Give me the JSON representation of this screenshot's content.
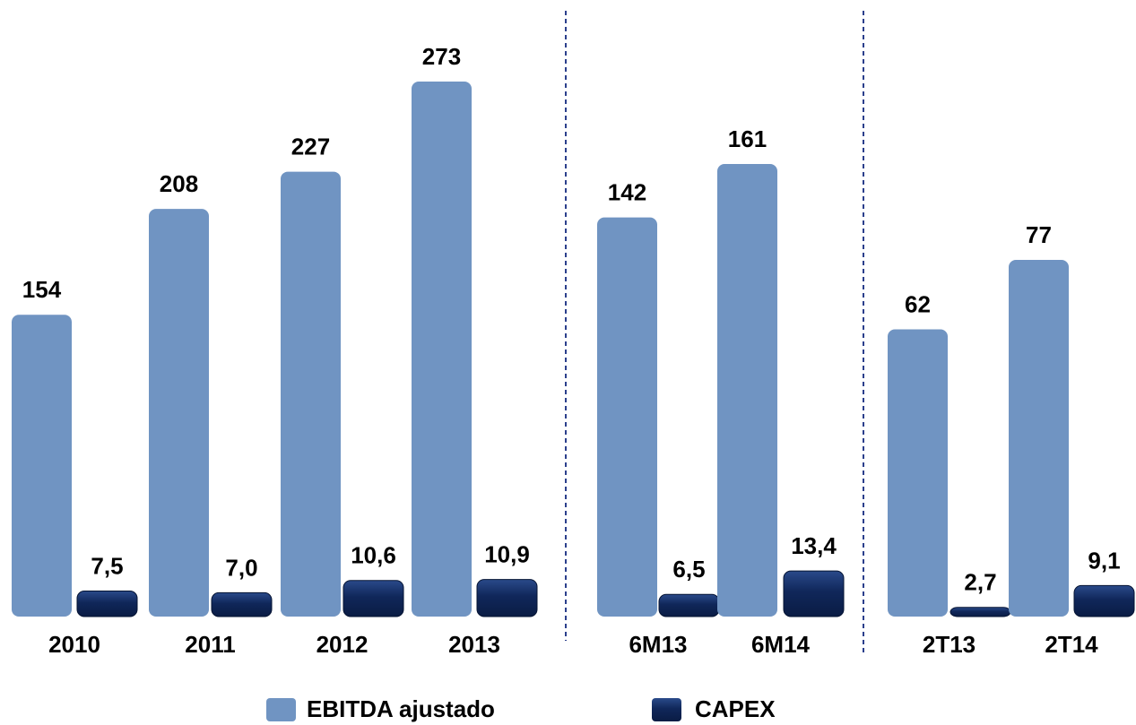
{
  "chart_data": {
    "type": "bar",
    "categories": [
      "2010",
      "2011",
      "2012",
      "2013",
      "6M13",
      "6M14",
      "2T13",
      "2T14"
    ],
    "series": [
      {
        "name": "EBITDA ajustado",
        "color": "#7094c2",
        "values": [
          154,
          208,
          227,
          273,
          142,
          161,
          62,
          77
        ]
      },
      {
        "name": "CAPEX",
        "color": "#0f2a5e",
        "axis": "y2",
        "values": [
          7.5,
          7.0,
          10.6,
          10.9,
          6.5,
          13.4,
          2.7,
          9.1
        ],
        "value_labels": [
          "7,5",
          "7,0",
          "10,6",
          "10,9",
          "6,5",
          "13,4",
          "2,7",
          "9,1"
        ]
      }
    ]
  }
}
